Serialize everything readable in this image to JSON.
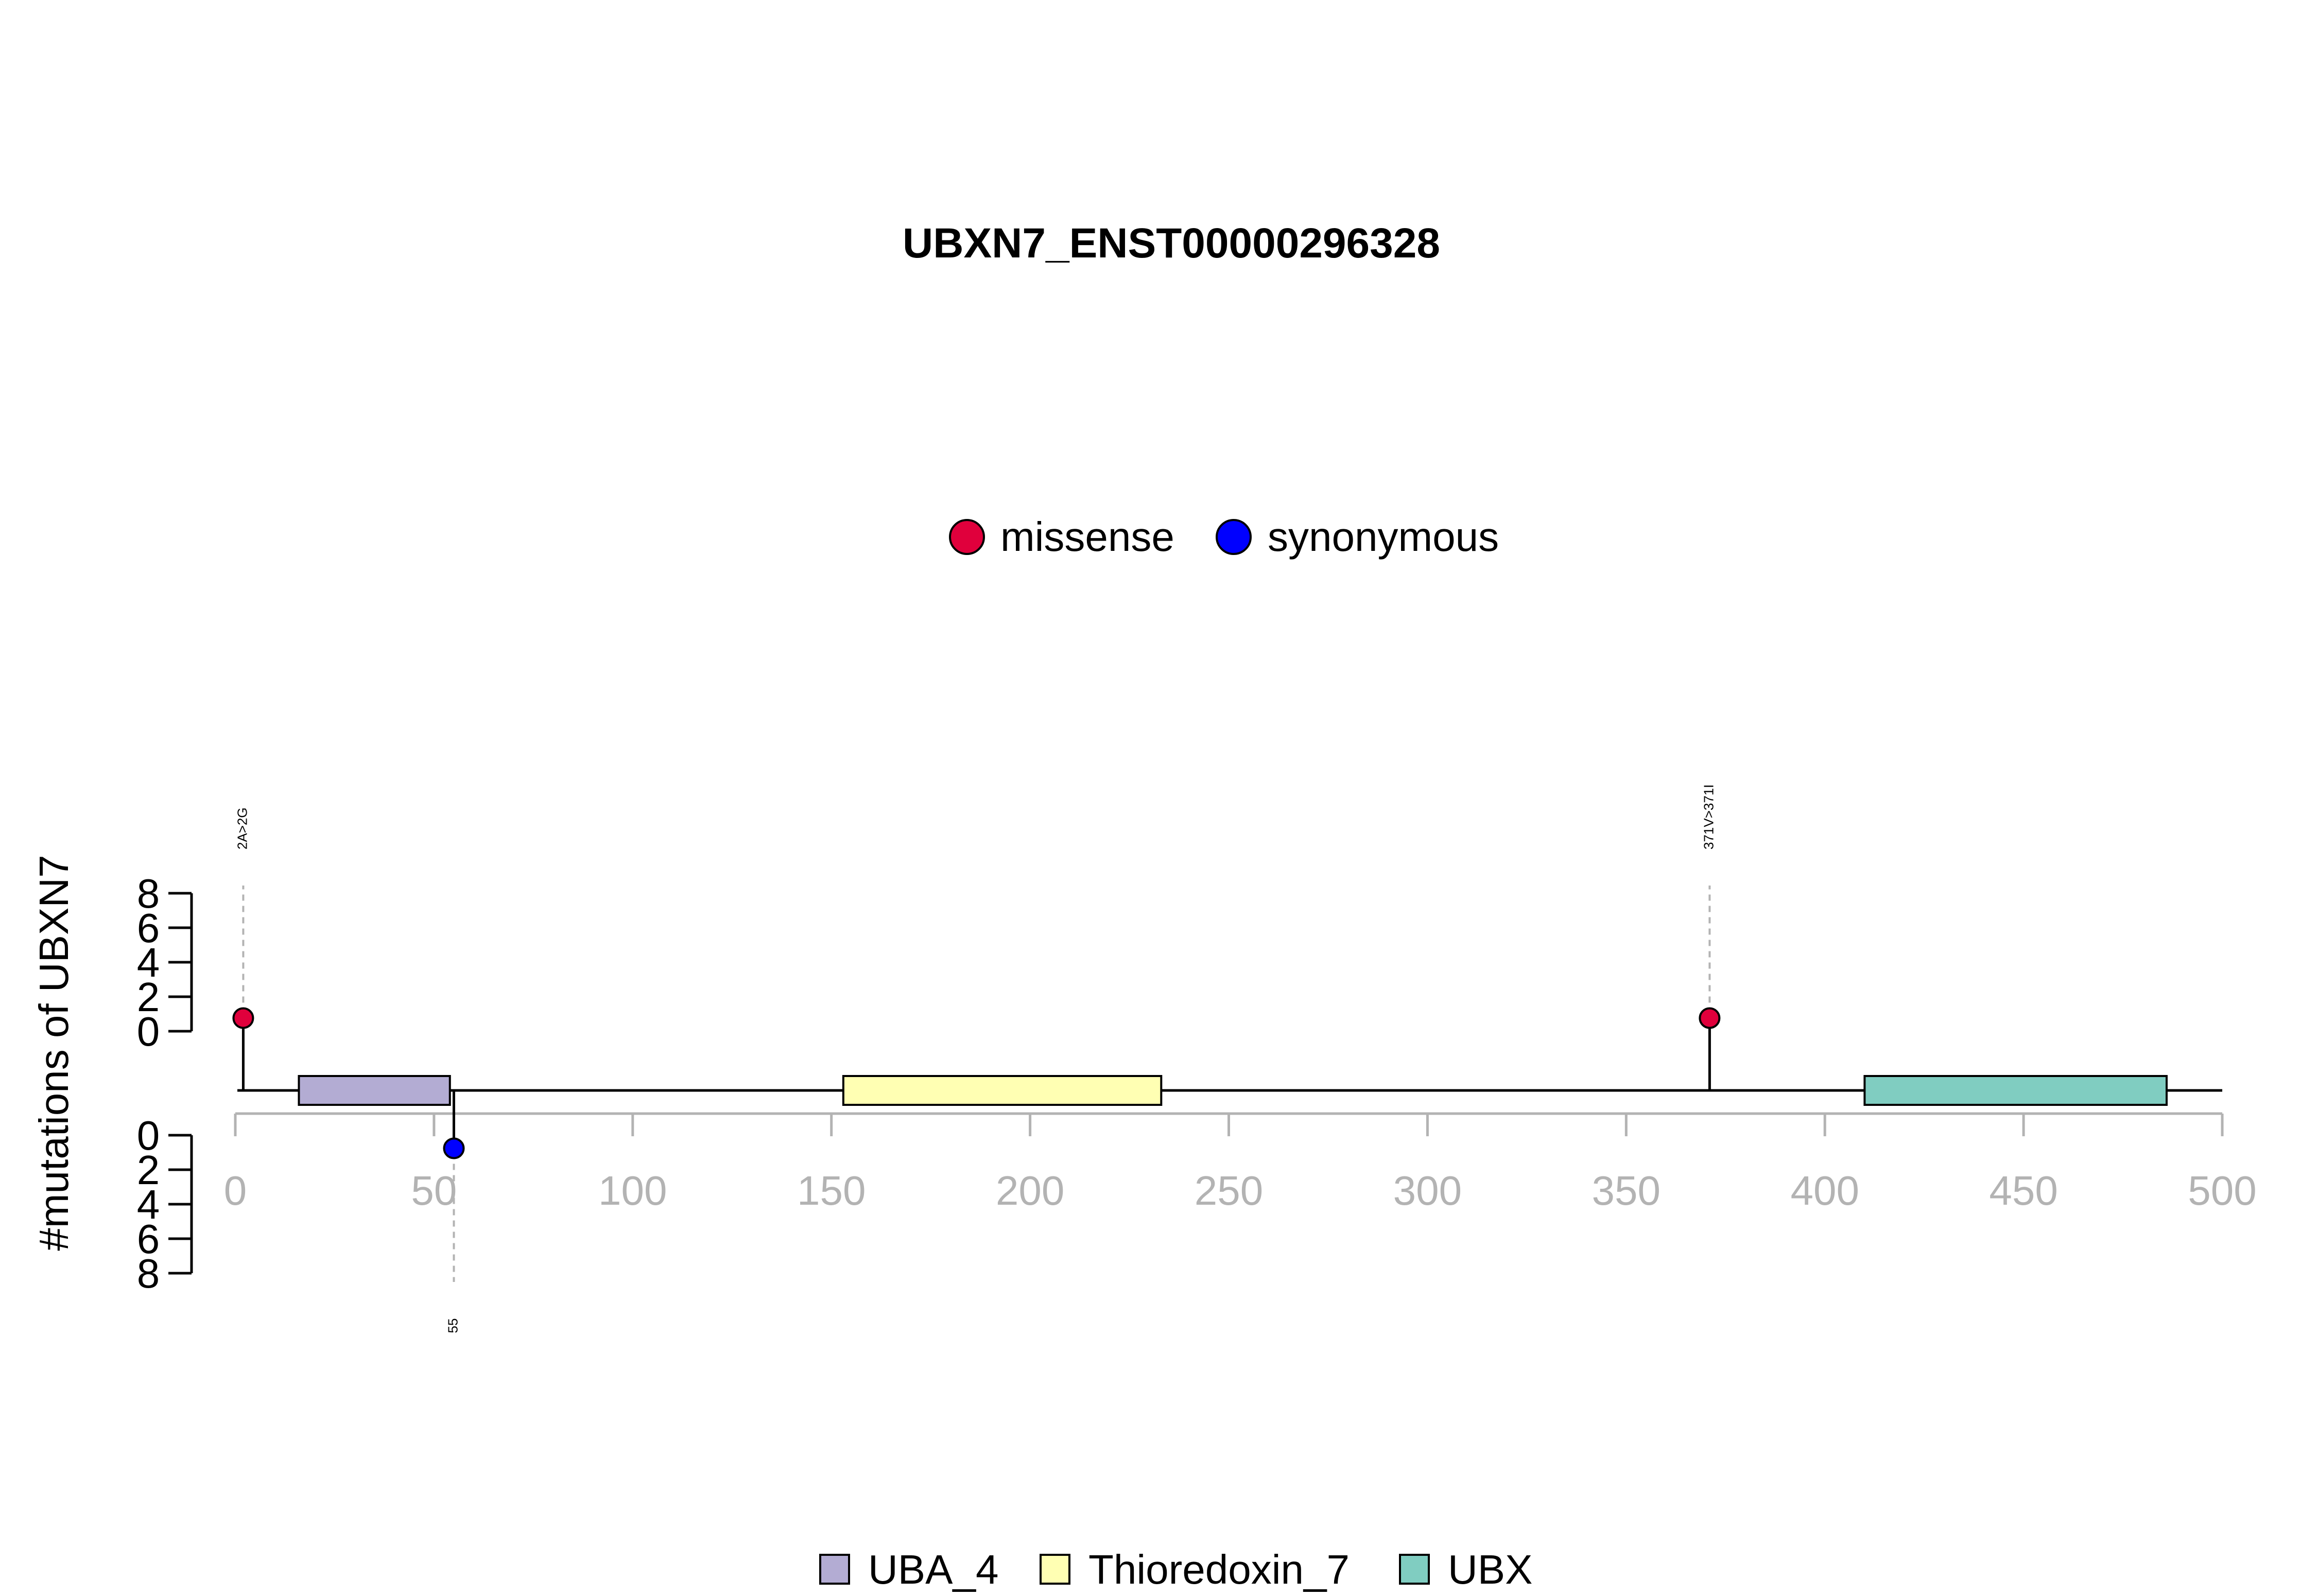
{
  "chart_data": {
    "type": "lollipop",
    "title": "UBXN7_ENST00000296328",
    "ylabel": "#mutations of UBXN7",
    "xlim": [
      0,
      500
    ],
    "x_ticks": [
      0,
      50,
      100,
      150,
      200,
      250,
      300,
      350,
      400,
      450,
      500
    ],
    "y_ticks": [
      0,
      2,
      4,
      6,
      8
    ],
    "protein_length": 500,
    "mutation_legend": [
      {
        "name": "missense",
        "color": "#e0003c"
      },
      {
        "name": "synonymous",
        "color": "#0000ff"
      }
    ],
    "mutations": [
      {
        "position": 2,
        "label": "2A>2G",
        "type": "missense",
        "count": 1,
        "side": "top"
      },
      {
        "position": 55,
        "label": "55",
        "type": "synonymous",
        "count": 1,
        "side": "bottom"
      },
      {
        "position": 371,
        "label": "371V>371I",
        "type": "missense",
        "count": 1,
        "side": "top"
      }
    ],
    "domains": [
      {
        "name": "UBA_4",
        "start": 16,
        "end": 54,
        "color": "#b3acd3"
      },
      {
        "name": "Thioredoxin_7",
        "start": 153,
        "end": 233,
        "color": "#ffffb3"
      },
      {
        "name": "UBX",
        "start": 410,
        "end": 486,
        "color": "#80cdc1"
      }
    ]
  }
}
